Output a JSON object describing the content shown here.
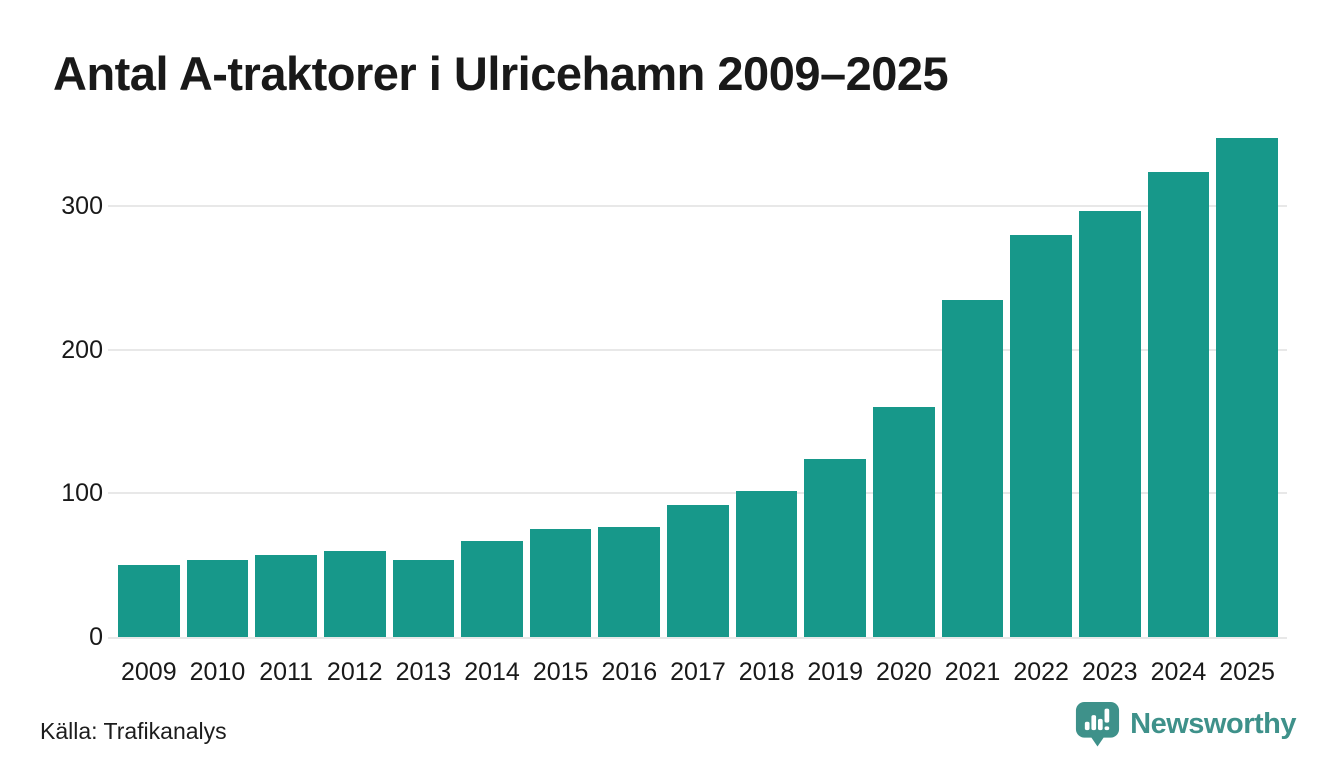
{
  "header": {
    "title": "Antal A-traktorer i Ulricehamn 2009–2025"
  },
  "footer": {
    "source": "Källa: Trafikanalys",
    "brand_name": "Newsworthy",
    "brand_icon": "bar-chart-pin-icon"
  },
  "colors": {
    "bar": "#17988a",
    "grid": "#e8e8e8",
    "text": "#191919",
    "brand": "#3e918a",
    "background": "#ffffff"
  },
  "chart_data": {
    "type": "bar",
    "title": "Antal A-traktorer i Ulricehamn 2009–2025",
    "categories": [
      "2009",
      "2010",
      "2011",
      "2012",
      "2013",
      "2014",
      "2015",
      "2016",
      "2017",
      "2018",
      "2019",
      "2020",
      "2021",
      "2022",
      "2023",
      "2024",
      "2025"
    ],
    "values": [
      50,
      54,
      57,
      60,
      54,
      67,
      75,
      77,
      92,
      102,
      124,
      160,
      235,
      280,
      297,
      324,
      348
    ],
    "xlabel": "",
    "ylabel": "",
    "ylim": [
      0,
      360
    ],
    "yticks": [
      0,
      100,
      200,
      300
    ],
    "grid": "horizontal",
    "legend": "none",
    "bar_color": "#17988a",
    "source": "Källa: Trafikanalys"
  }
}
